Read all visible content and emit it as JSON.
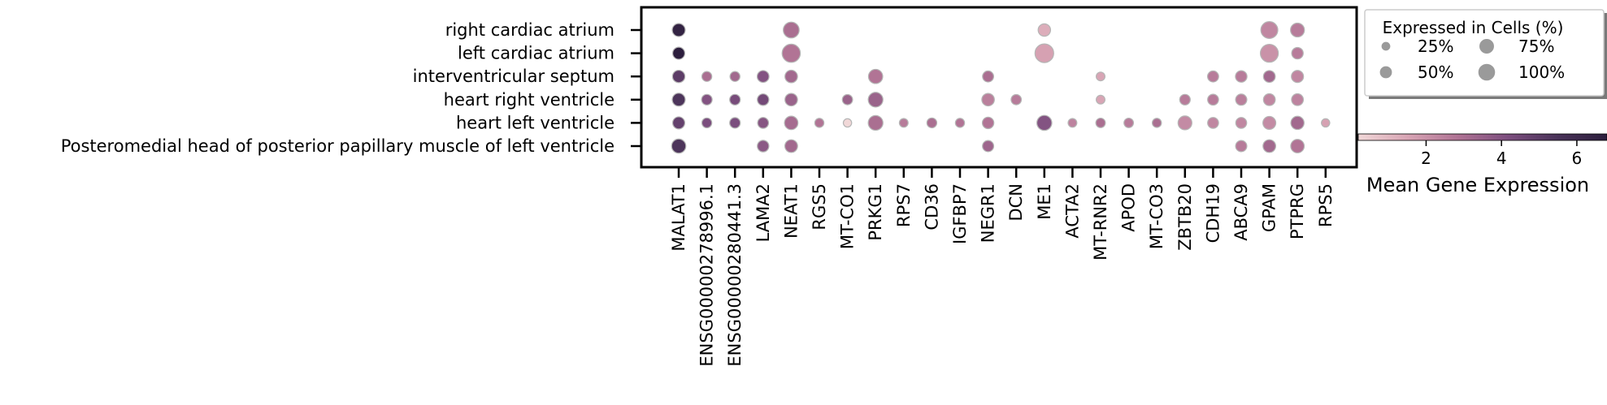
{
  "chart_data": {
    "type": "dotplot",
    "rows": [
      "right cardiac atrium",
      "left cardiac atrium",
      "interventricular septum",
      "heart right ventricle",
      "heart left ventricle",
      "Posteromedial head of posterior papillary muscle of left ventricle"
    ],
    "columns": [
      "MALAT1",
      "ENSG00000278996.1",
      "ENSG00000280441.3",
      "LAMA2",
      "NEAT1",
      "RGS5",
      "MT-CO1",
      "PRKG1",
      "RPS7",
      "CD36",
      "IGFBP7",
      "NEGR1",
      "DCN",
      "ME1",
      "ACTA2",
      "MT-RNR2",
      "APOD",
      "MT-CO3",
      "ZBTB20",
      "CDH19",
      "ABCA9",
      "GPAM",
      "PTPRG",
      "RPS5"
    ],
    "points": [
      {
        "row": 0,
        "col": 0,
        "pct": 48,
        "expr": 6.5
      },
      {
        "row": 0,
        "col": 4,
        "pct": 72,
        "expr": 3.0
      },
      {
        "row": 0,
        "col": 13,
        "pct": 44,
        "expr": 1.3
      },
      {
        "row": 0,
        "col": 21,
        "pct": 82,
        "expr": 2.3
      },
      {
        "row": 0,
        "col": 22,
        "pct": 55,
        "expr": 2.6
      },
      {
        "row": 1,
        "col": 0,
        "pct": 42,
        "expr": 6.8
      },
      {
        "row": 1,
        "col": 4,
        "pct": 95,
        "expr": 2.8
      },
      {
        "row": 1,
        "col": 13,
        "pct": 100,
        "expr": 1.6
      },
      {
        "row": 1,
        "col": 21,
        "pct": 92,
        "expr": 2.0
      },
      {
        "row": 1,
        "col": 22,
        "pct": 38,
        "expr": 2.6
      },
      {
        "row": 2,
        "col": 0,
        "pct": 44,
        "expr": 5.0
      },
      {
        "row": 2,
        "col": 1,
        "pct": 28,
        "expr": 3.0
      },
      {
        "row": 2,
        "col": 2,
        "pct": 28,
        "expr": 3.2
      },
      {
        "row": 2,
        "col": 3,
        "pct": 40,
        "expr": 4.0
      },
      {
        "row": 2,
        "col": 4,
        "pct": 45,
        "expr": 3.2
      },
      {
        "row": 2,
        "col": 7,
        "pct": 58,
        "expr": 2.8
      },
      {
        "row": 2,
        "col": 11,
        "pct": 35,
        "expr": 3.0
      },
      {
        "row": 2,
        "col": 15,
        "pct": 22,
        "expr": 1.5
      },
      {
        "row": 2,
        "col": 19,
        "pct": 35,
        "expr": 2.6
      },
      {
        "row": 2,
        "col": 20,
        "pct": 38,
        "expr": 2.6
      },
      {
        "row": 2,
        "col": 21,
        "pct": 40,
        "expr": 3.2
      },
      {
        "row": 2,
        "col": 22,
        "pct": 42,
        "expr": 2.3
      },
      {
        "row": 3,
        "col": 0,
        "pct": 48,
        "expr": 5.4
      },
      {
        "row": 3,
        "col": 1,
        "pct": 32,
        "expr": 4.0
      },
      {
        "row": 3,
        "col": 2,
        "pct": 32,
        "expr": 4.3
      },
      {
        "row": 3,
        "col": 3,
        "pct": 38,
        "expr": 4.4
      },
      {
        "row": 3,
        "col": 4,
        "pct": 45,
        "expr": 3.4
      },
      {
        "row": 3,
        "col": 6,
        "pct": 30,
        "expr": 3.4
      },
      {
        "row": 3,
        "col": 7,
        "pct": 62,
        "expr": 3.4
      },
      {
        "row": 3,
        "col": 11,
        "pct": 45,
        "expr": 2.5
      },
      {
        "row": 3,
        "col": 12,
        "pct": 30,
        "expr": 2.6
      },
      {
        "row": 3,
        "col": 15,
        "pct": 22,
        "expr": 1.5
      },
      {
        "row": 3,
        "col": 18,
        "pct": 32,
        "expr": 2.6
      },
      {
        "row": 3,
        "col": 19,
        "pct": 34,
        "expr": 2.6
      },
      {
        "row": 3,
        "col": 20,
        "pct": 36,
        "expr": 2.5
      },
      {
        "row": 3,
        "col": 21,
        "pct": 40,
        "expr": 2.3
      },
      {
        "row": 3,
        "col": 22,
        "pct": 40,
        "expr": 2.4
      },
      {
        "row": 4,
        "col": 0,
        "pct": 42,
        "expr": 4.8
      },
      {
        "row": 4,
        "col": 1,
        "pct": 28,
        "expr": 4.2
      },
      {
        "row": 4,
        "col": 2,
        "pct": 32,
        "expr": 4.2
      },
      {
        "row": 4,
        "col": 3,
        "pct": 34,
        "expr": 3.9
      },
      {
        "row": 4,
        "col": 4,
        "pct": 52,
        "expr": 3.1
      },
      {
        "row": 4,
        "col": 5,
        "pct": 24,
        "expr": 2.8
      },
      {
        "row": 4,
        "col": 6,
        "pct": 20,
        "expr": 0.2
      },
      {
        "row": 4,
        "col": 7,
        "pct": 62,
        "expr": 3.0
      },
      {
        "row": 4,
        "col": 8,
        "pct": 22,
        "expr": 2.6
      },
      {
        "row": 4,
        "col": 9,
        "pct": 28,
        "expr": 3.0
      },
      {
        "row": 4,
        "col": 10,
        "pct": 24,
        "expr": 2.8
      },
      {
        "row": 4,
        "col": 11,
        "pct": 38,
        "expr": 2.8
      },
      {
        "row": 4,
        "col": 13,
        "pct": 64,
        "expr": 4.0
      },
      {
        "row": 4,
        "col": 14,
        "pct": 22,
        "expr": 2.4
      },
      {
        "row": 4,
        "col": 15,
        "pct": 26,
        "expr": 3.0
      },
      {
        "row": 4,
        "col": 16,
        "pct": 26,
        "expr": 2.6
      },
      {
        "row": 4,
        "col": 17,
        "pct": 24,
        "expr": 3.0
      },
      {
        "row": 4,
        "col": 18,
        "pct": 55,
        "expr": 2.2
      },
      {
        "row": 4,
        "col": 19,
        "pct": 34,
        "expr": 2.3
      },
      {
        "row": 4,
        "col": 20,
        "pct": 34,
        "expr": 2.3
      },
      {
        "row": 4,
        "col": 21,
        "pct": 48,
        "expr": 2.2
      },
      {
        "row": 4,
        "col": 22,
        "pct": 50,
        "expr": 3.2
      },
      {
        "row": 4,
        "col": 23,
        "pct": 20,
        "expr": 1.6
      },
      {
        "row": 5,
        "col": 0,
        "pct": 58,
        "expr": 5.4
      },
      {
        "row": 5,
        "col": 3,
        "pct": 38,
        "expr": 3.8
      },
      {
        "row": 5,
        "col": 4,
        "pct": 46,
        "expr": 3.2
      },
      {
        "row": 5,
        "col": 11,
        "pct": 36,
        "expr": 3.3
      },
      {
        "row": 5,
        "col": 20,
        "pct": 36,
        "expr": 2.6
      },
      {
        "row": 5,
        "col": 21,
        "pct": 46,
        "expr": 3.2
      },
      {
        "row": 5,
        "col": 22,
        "pct": 52,
        "expr": 2.8
      }
    ],
    "size_legend": {
      "title": "Expressed in Cells (%)",
      "items": [
        {
          "label": "25%",
          "pct": 25
        },
        {
          "label": "75%",
          "pct": 75
        },
        {
          "label": "50%",
          "pct": 50
        },
        {
          "label": "100%",
          "pct": 100
        }
      ]
    },
    "colorbar": {
      "label": "Mean Gene Expression",
      "ticks": [
        2,
        4,
        6
      ],
      "range": [
        0.2,
        6.8
      ],
      "colors": [
        "#f1d8d8",
        "#d8a4b4",
        "#b07394",
        "#7d4f7f",
        "#4a3359",
        "#2c1e3d"
      ]
    }
  }
}
